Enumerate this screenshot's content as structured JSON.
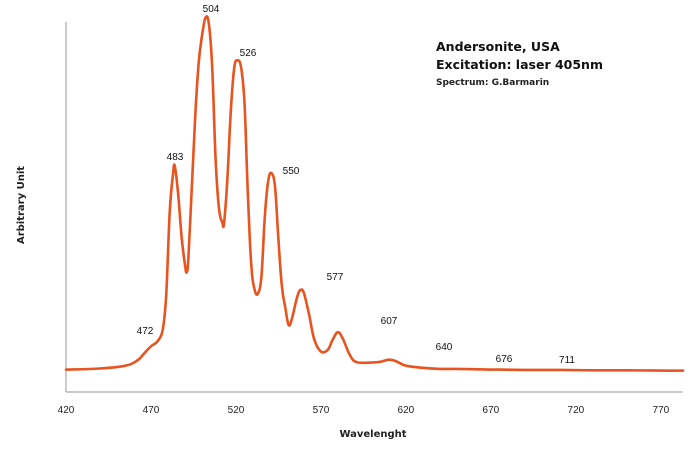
{
  "chart_data": {
    "type": "line",
    "title_lines": [
      "Andersonite, USA",
      "Excitation: laser 405nm"
    ],
    "credit": "Spectrum: G.Barmarin",
    "xlabel": "Wavelenght",
    "ylabel": "Arbitrary Unit",
    "xlim": [
      420,
      783
    ],
    "ylim": [
      0,
      1
    ],
    "x_ticks": [
      420,
      470,
      520,
      570,
      620,
      670,
      720,
      770
    ],
    "grid": false,
    "line_color": "#e8531f",
    "peak_labels": [
      "472",
      "483",
      "504",
      "526",
      "550",
      "577",
      "607",
      "640",
      "676",
      "711"
    ],
    "series": [
      {
        "values": [
          [
            420,
            0.004
          ],
          [
            440,
            0.007
          ],
          [
            455,
            0.015
          ],
          [
            462,
            0.03
          ],
          [
            466,
            0.05
          ],
          [
            470,
            0.07
          ],
          [
            474,
            0.085
          ],
          [
            477,
            0.12
          ],
          [
            479,
            0.22
          ],
          [
            481,
            0.45
          ],
          [
            483,
            0.56
          ],
          [
            484,
            0.58
          ],
          [
            486,
            0.5
          ],
          [
            488,
            0.38
          ],
          [
            490,
            0.3
          ],
          [
            491,
            0.28
          ],
          [
            492,
            0.32
          ],
          [
            494,
            0.52
          ],
          [
            496,
            0.72
          ],
          [
            498,
            0.87
          ],
          [
            500,
            0.95
          ],
          [
            502,
            1.0
          ],
          [
            504,
            0.985
          ],
          [
            506,
            0.86
          ],
          [
            508,
            0.6
          ],
          [
            510,
            0.46
          ],
          [
            512,
            0.42
          ],
          [
            513,
            0.42
          ],
          [
            515,
            0.55
          ],
          [
            517,
            0.74
          ],
          [
            519,
            0.86
          ],
          [
            521,
            0.88
          ],
          [
            523,
            0.86
          ],
          [
            525,
            0.76
          ],
          [
            527,
            0.5
          ],
          [
            529,
            0.3
          ],
          [
            531,
            0.23
          ],
          [
            533,
            0.22
          ],
          [
            535,
            0.27
          ],
          [
            537,
            0.44
          ],
          [
            539,
            0.54
          ],
          [
            541,
            0.56
          ],
          [
            543,
            0.52
          ],
          [
            545,
            0.37
          ],
          [
            547,
            0.24
          ],
          [
            549,
            0.18
          ],
          [
            551,
            0.13
          ],
          [
            553,
            0.15
          ],
          [
            556,
            0.21
          ],
          [
            558,
            0.23
          ],
          [
            560,
            0.22
          ],
          [
            563,
            0.16
          ],
          [
            566,
            0.09
          ],
          [
            570,
            0.055
          ],
          [
            574,
            0.06
          ],
          [
            577,
            0.09
          ],
          [
            580,
            0.11
          ],
          [
            583,
            0.09
          ],
          [
            587,
            0.045
          ],
          [
            591,
            0.025
          ],
          [
            600,
            0.024
          ],
          [
            605,
            0.026
          ],
          [
            610,
            0.032
          ],
          [
            614,
            0.028
          ],
          [
            620,
            0.015
          ],
          [
            630,
            0.009
          ],
          [
            640,
            0.006
          ],
          [
            650,
            0.006
          ],
          [
            660,
            0.005
          ],
          [
            670,
            0.004
          ],
          [
            676,
            0.004
          ],
          [
            690,
            0.003
          ],
          [
            705,
            0.003
          ],
          [
            711,
            0.003
          ],
          [
            730,
            0.002
          ],
          [
            750,
            0.002
          ],
          [
            770,
            0.001
          ],
          [
            783,
            0.001
          ]
        ]
      }
    ]
  }
}
